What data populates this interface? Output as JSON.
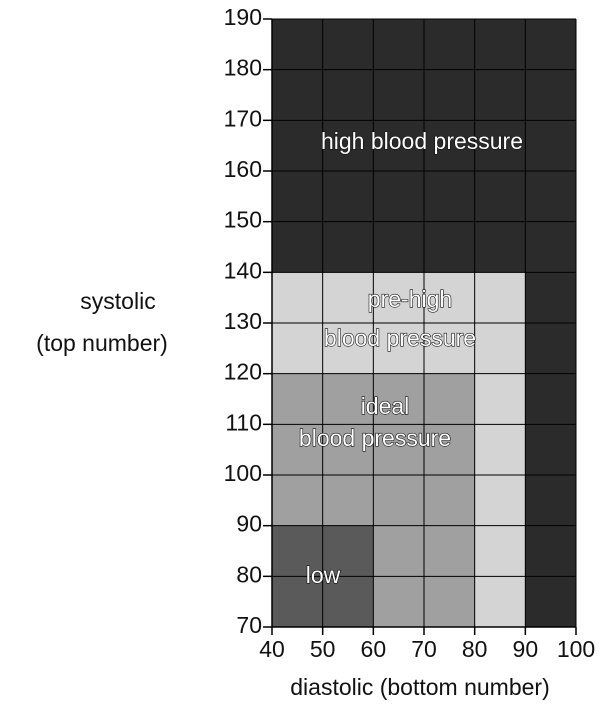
{
  "chart_data": {
    "type": "region",
    "xlabel": "diastolic (bottom number)",
    "ylabel": [
      "systolic",
      "(top number)"
    ],
    "xlim": [
      40,
      100
    ],
    "ylim": [
      70,
      190
    ],
    "xticks": [
      40,
      50,
      60,
      70,
      80,
      90,
      100
    ],
    "yticks": [
      70,
      80,
      90,
      100,
      110,
      120,
      130,
      140,
      150,
      160,
      170,
      180,
      190
    ],
    "grid": true,
    "regions": [
      {
        "label": [
          "high blood pressure"
        ],
        "color": "#2b2b2b",
        "rects": [
          [
            40,
            100,
            140,
            190
          ],
          [
            90,
            100,
            70,
            140
          ]
        ]
      },
      {
        "label": [
          "pre-high",
          "blood pressure"
        ],
        "color": "#d4d4d4",
        "rects": [
          [
            40,
            90,
            120,
            140
          ],
          [
            80,
            90,
            70,
            120
          ]
        ]
      },
      {
        "label": [
          "ideal",
          "blood pressure"
        ],
        "color": "#a0a0a0",
        "rects": [
          [
            40,
            80,
            90,
            120
          ],
          [
            60,
            80,
            70,
            90
          ]
        ]
      },
      {
        "label": [
          "low"
        ],
        "color": "#5a5a5a",
        "rects": [
          [
            40,
            60,
            70,
            90
          ]
        ]
      }
    ]
  }
}
